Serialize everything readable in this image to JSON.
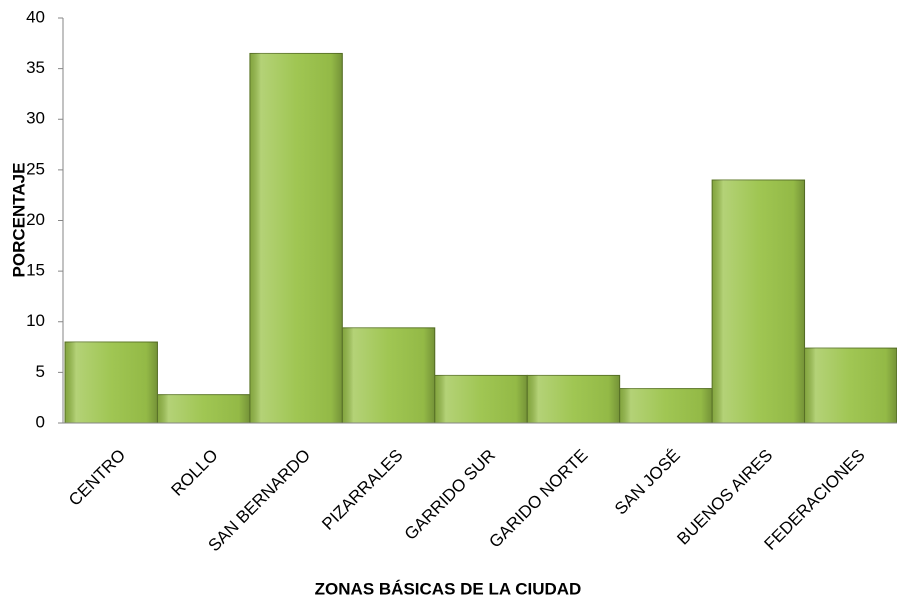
{
  "chart_data": {
    "type": "bar",
    "xlabel": "ZONAS BÁSICAS DE LA CIUDAD",
    "ylabel": "PORCENTAJE",
    "categories": [
      "CENTRO",
      "ROLLO",
      "SAN BERNARDO",
      "PIZARRALES",
      "GARRIDO SUR",
      "GARIDO NORTE",
      "SAN JOSÉ",
      "BUENOS AIRES",
      "FEDERACIONES"
    ],
    "values": [
      8,
      2.8,
      36.5,
      9.4,
      4.7,
      4.7,
      3.4,
      24,
      7.4
    ],
    "color": "#9bc34a",
    "ylim": [
      0,
      40
    ],
    "yticks": [
      0,
      5,
      10,
      15,
      20,
      25,
      30,
      35,
      40
    ],
    "grid": false
  }
}
